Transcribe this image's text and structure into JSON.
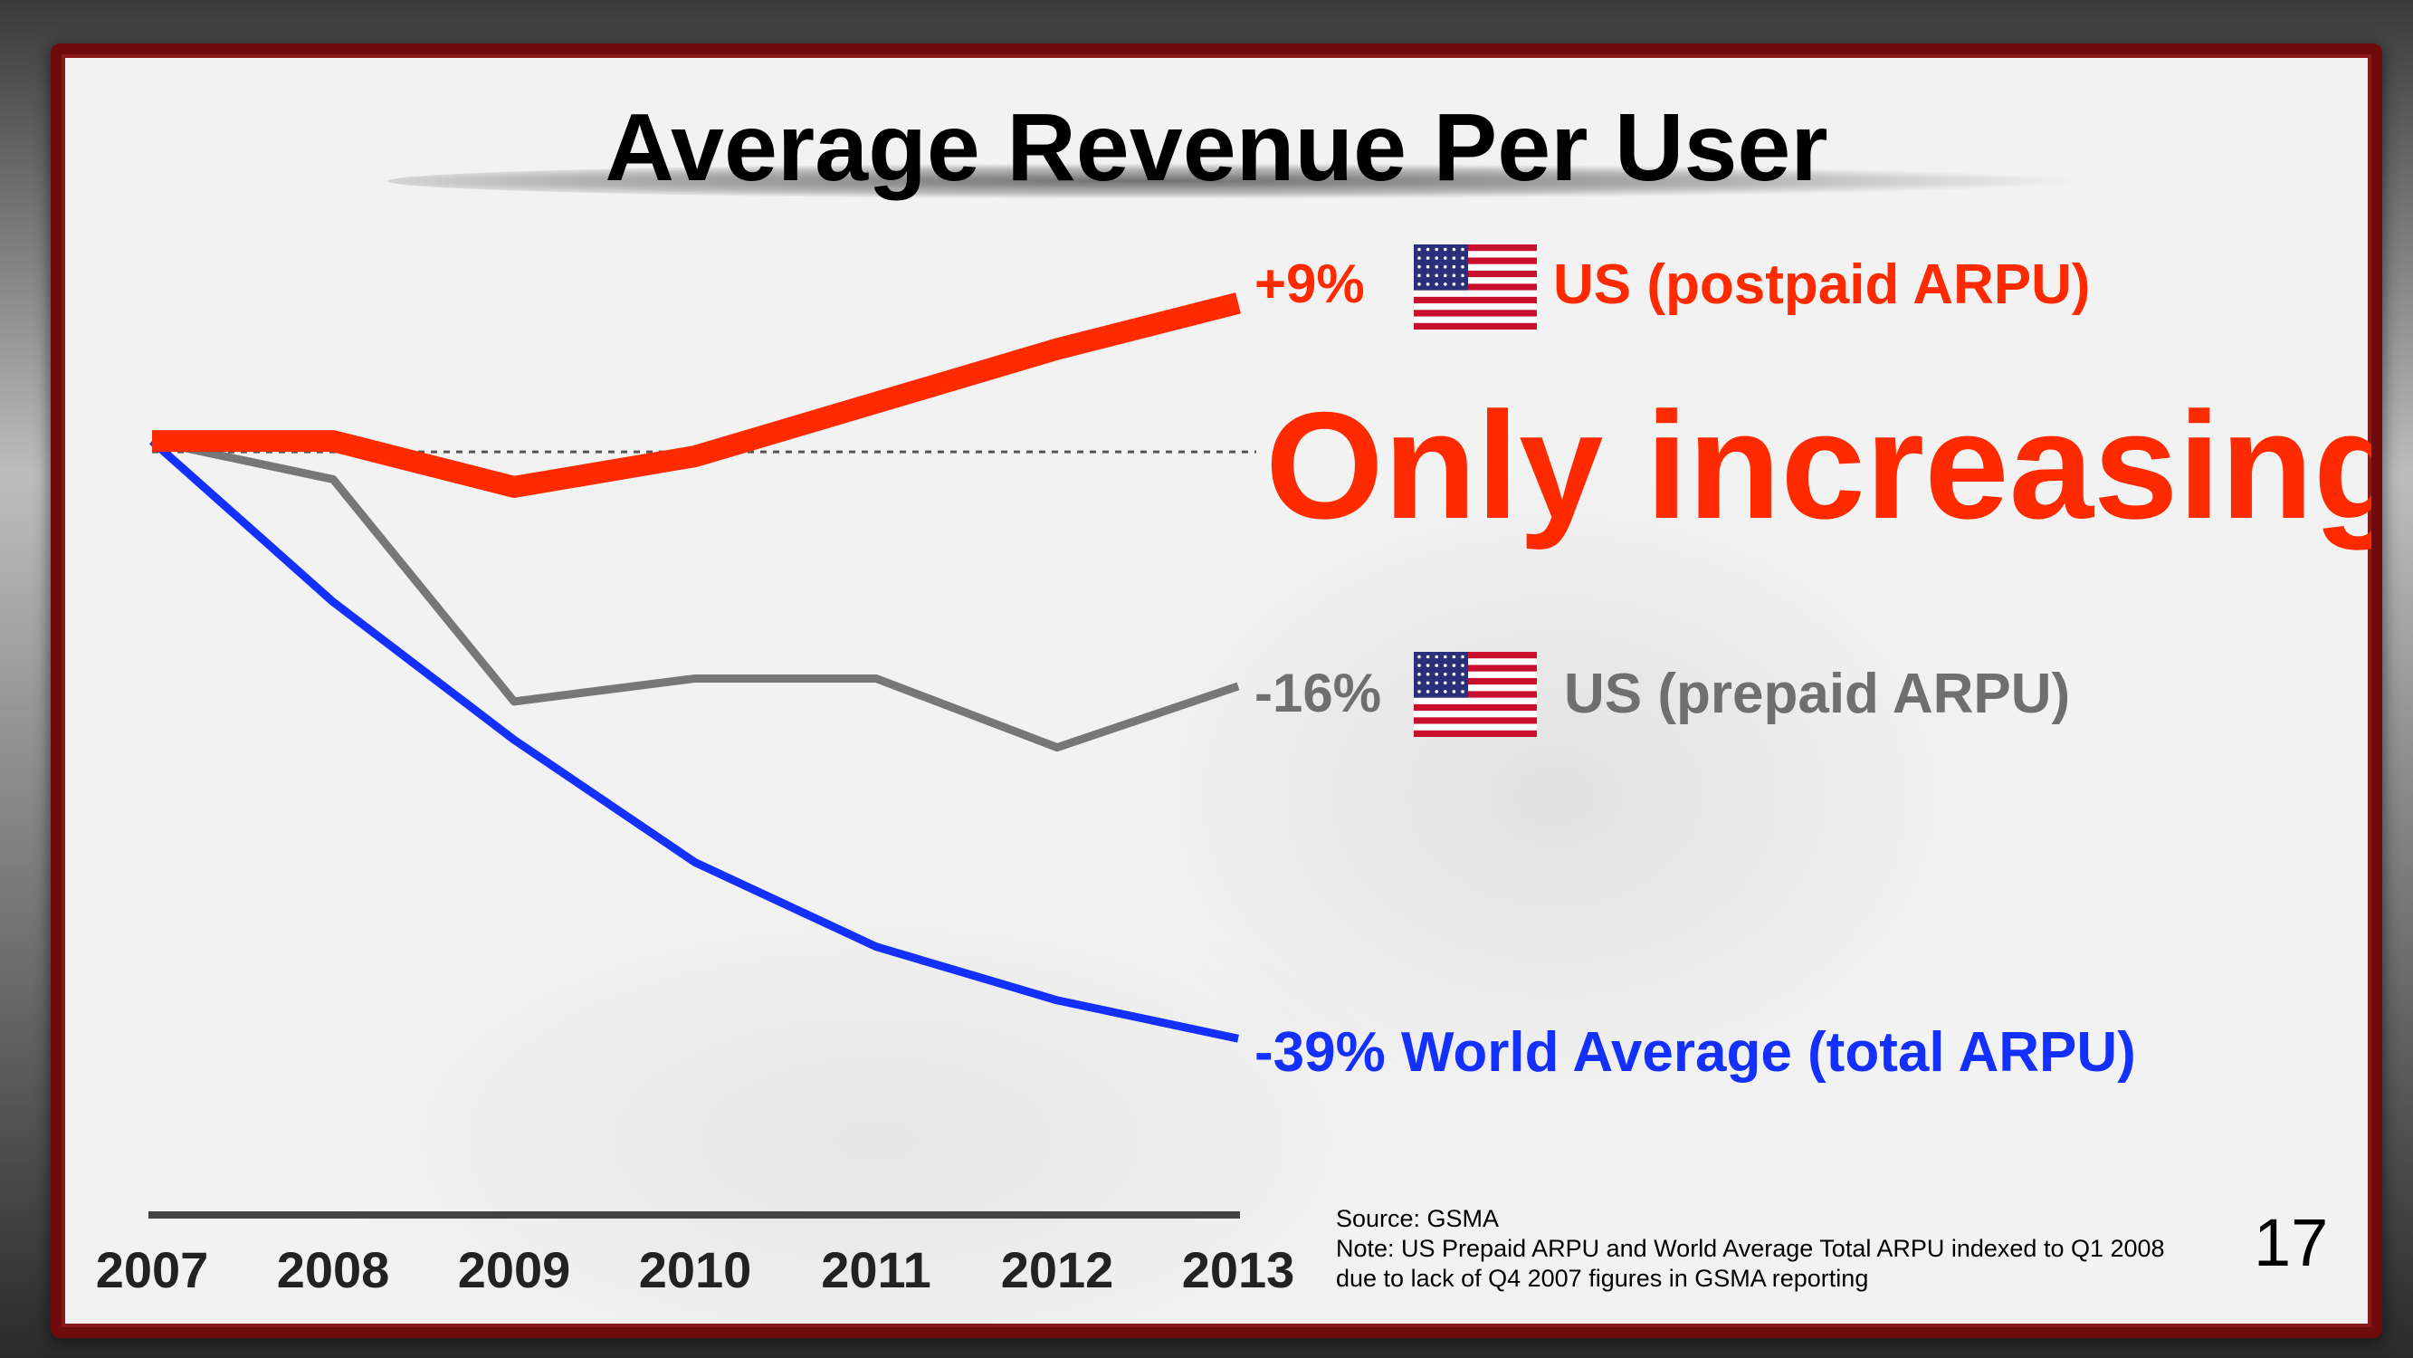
{
  "title": "Average Revenue Per User",
  "headline": "Only increasing",
  "chart_data": {
    "type": "line",
    "title": "Average Revenue Per User",
    "x": [
      "2007",
      "2008",
      "2009",
      "2010",
      "2011",
      "2012",
      "2013"
    ],
    "y_unit": "indexed change vs. 2007 (%)",
    "ylim": [
      -42,
      12
    ],
    "grid": false,
    "series": [
      {
        "key": "postpaid",
        "name": "US (postpaid ARPU)",
        "change_label": "+9%",
        "color": "#ff2a00",
        "values": [
          0,
          0,
          -3,
          -1,
          2.5,
          6,
          9
        ]
      },
      {
        "key": "prepaid",
        "name": "US (prepaid ARPU)",
        "change_label": "-16%",
        "color": "#777777",
        "values": [
          0,
          -2.5,
          -17,
          -15.5,
          -15.5,
          -20,
          -16
        ]
      },
      {
        "key": "world",
        "name": "World Average (total ARPU)",
        "change_label": "-39%",
        "color": "#1430ff",
        "values": [
          0,
          -10.5,
          -19.5,
          -27.5,
          -33,
          -36.5,
          -39
        ]
      }
    ]
  },
  "source": {
    "line1": "Source: GSMA",
    "line2": "Note: US Prepaid ARPU and World Average Total ARPU indexed to Q1 2008",
    "line3": "due to lack of Q4 2007 figures in GSMA reporting"
  },
  "page_number": "17",
  "icons": {
    "flag": "us-flag-icon"
  }
}
